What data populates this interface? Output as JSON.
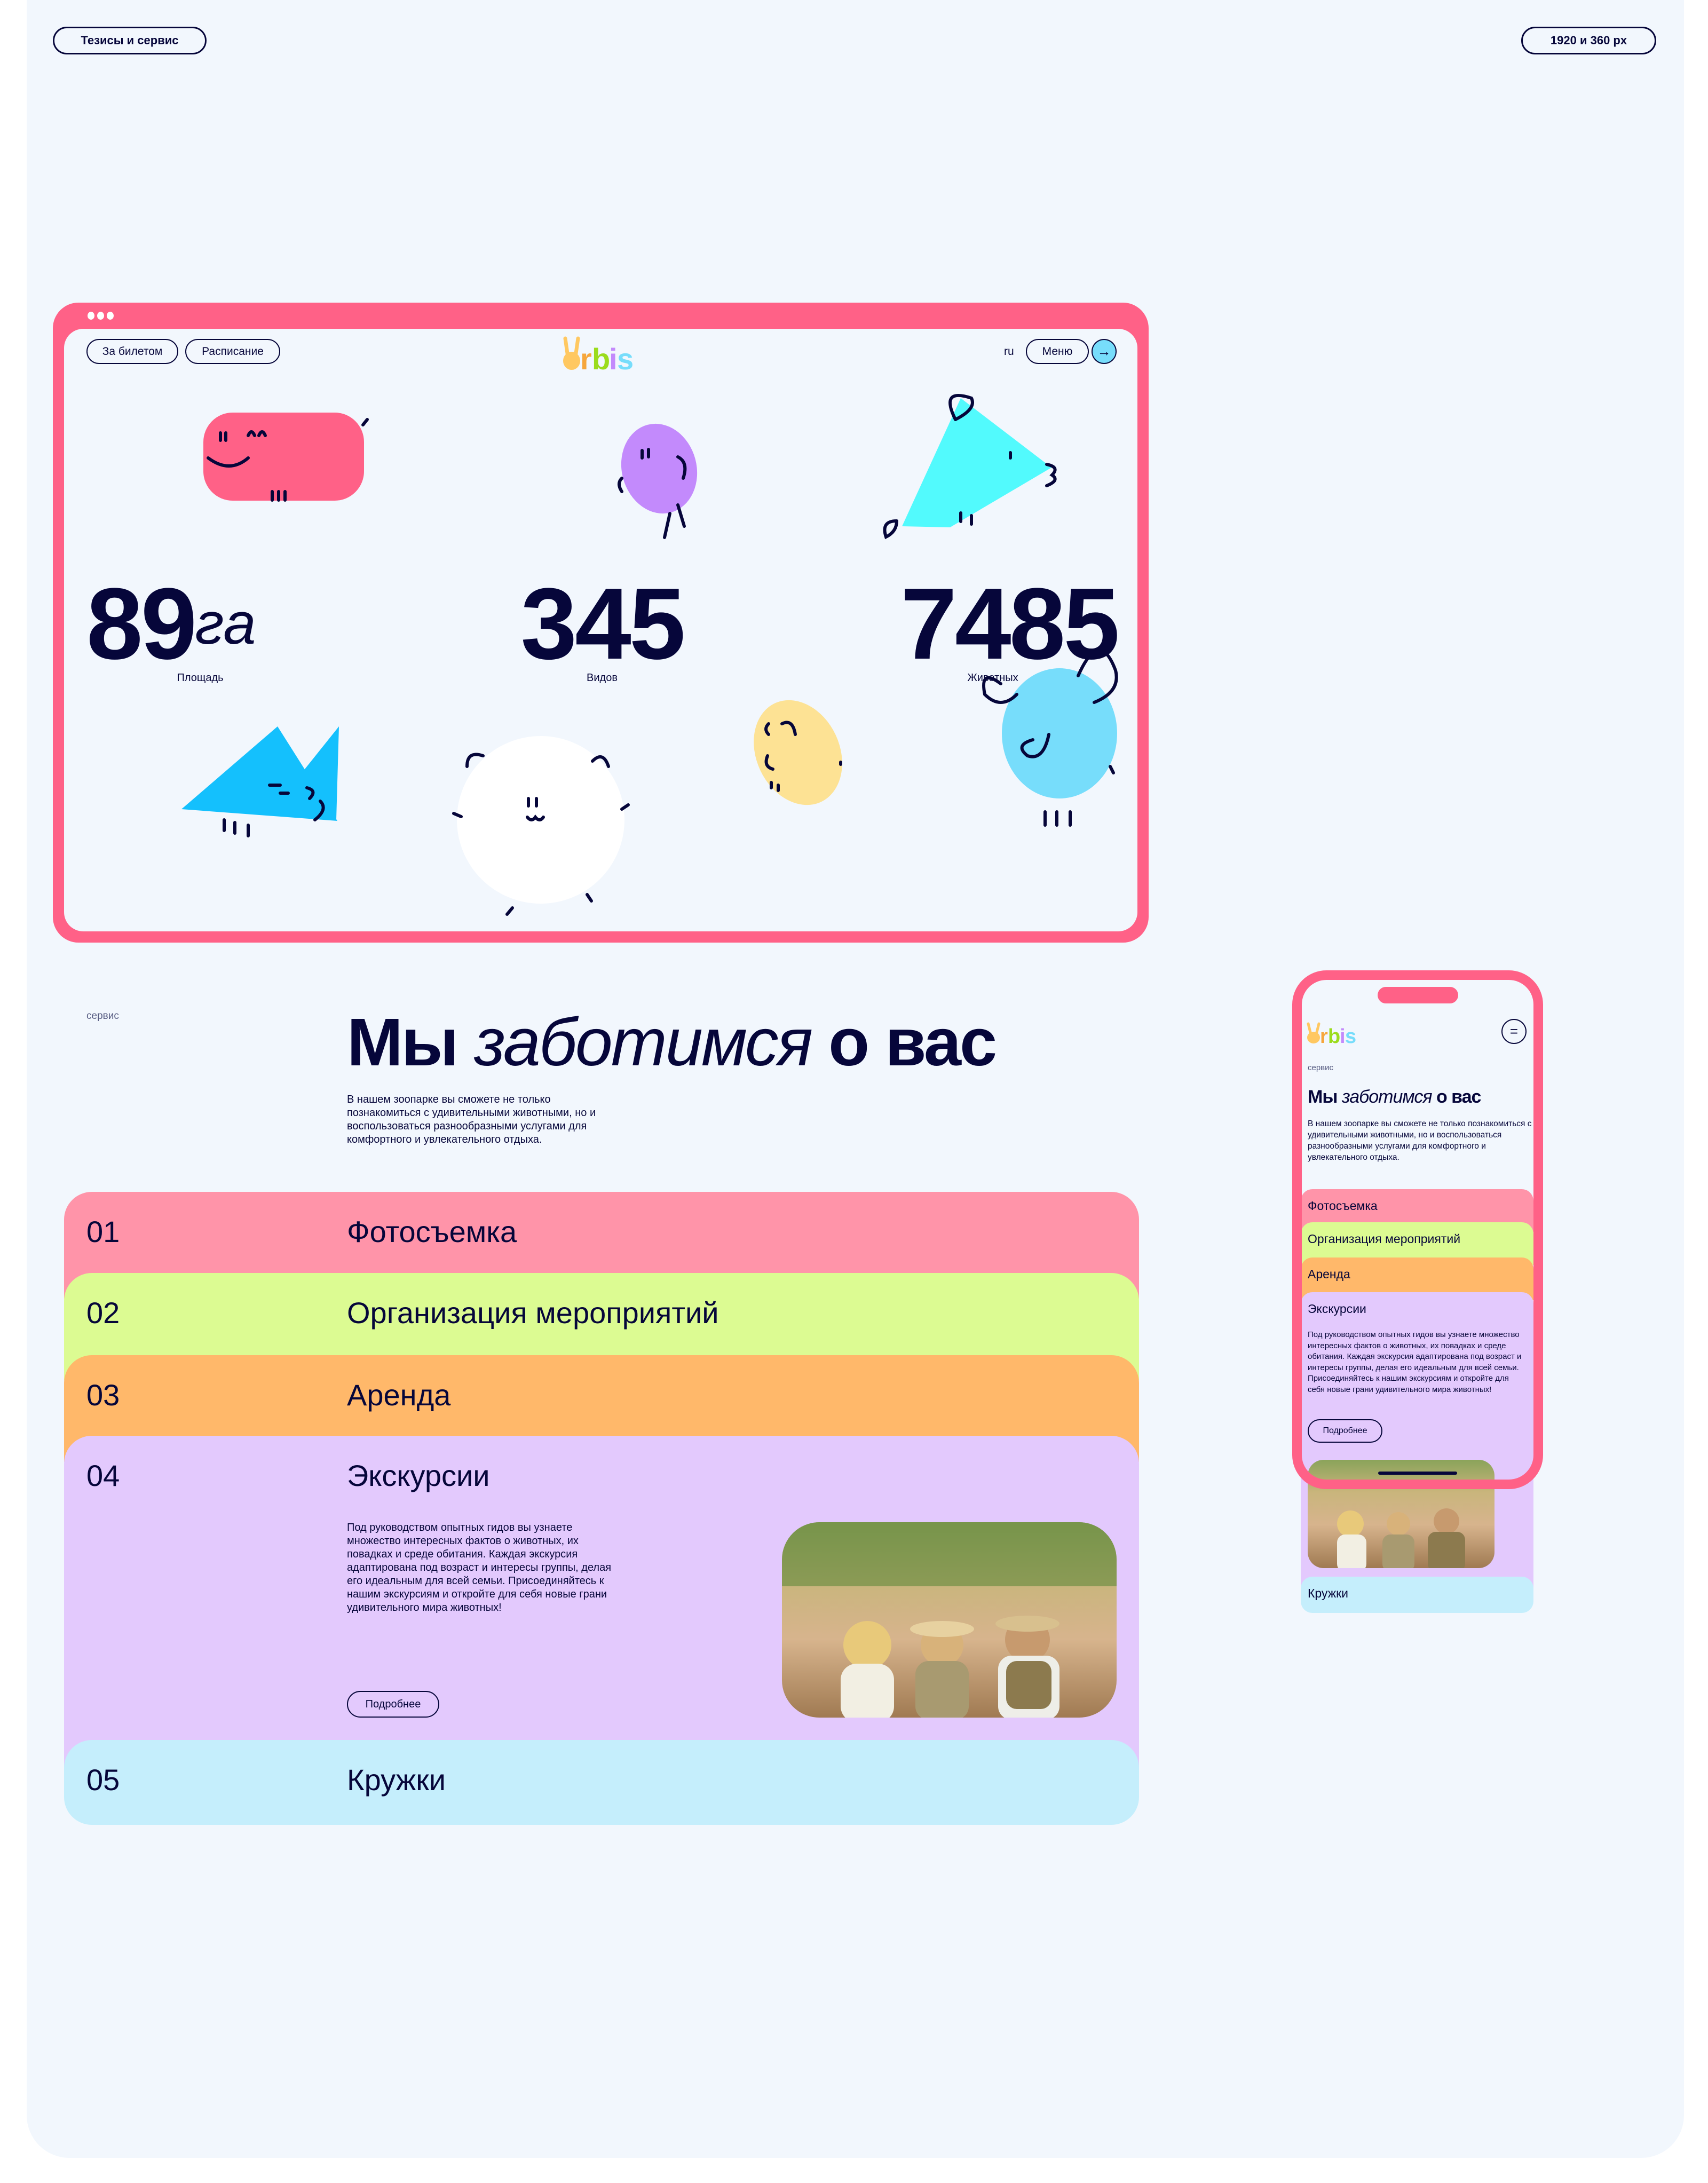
{
  "labels": {
    "left_tag": "Тезисы и сервис",
    "right_tag": "1920 и 360 px"
  },
  "desktop": {
    "nav": {
      "ticket": "За билетом",
      "schedule": "Расписание",
      "lang": "ru",
      "menu": "Меню",
      "logo": "orbis"
    },
    "stats": [
      {
        "value": "89",
        "unit": "га",
        "label": "Площадь"
      },
      {
        "value": "345",
        "label": "Видов"
      },
      {
        "value": "7485",
        "label": "Животных"
      }
    ],
    "section_tag": "сервис",
    "heading": {
      "part1": "Мы",
      "part2": "заботимся",
      "part3": "о вас"
    },
    "intro": "В нашем зоопарке вы сможете не только познакомиться с удивительными животными, но и воспользоваться разнообразными услугами для комфортного и увлекательного отдыха.",
    "services": [
      {
        "num": "01",
        "title": "Фотосъемка",
        "color": "#FF94A9"
      },
      {
        "num": "02",
        "title": "Организация мероприятий",
        "color": "#DCFB92"
      },
      {
        "num": "03",
        "title": "Аренда",
        "color": "#FFB86A"
      },
      {
        "num": "04",
        "title": "Экскурсии",
        "color": "#E3C9FD",
        "text": "Под руководством опытных гидов вы узнаете множество интересных фактов о животных, их повадках и среде обитания. Каждая экскурсия адаптирована под возраст и интересы группы, делая его идеальным для всей семьи. Присоединяйтесь к нашим экскурсиям и откройте для себя новые грани удивительного мира животных!",
        "button": "Подробнее"
      },
      {
        "num": "05",
        "title": "Кружки",
        "color": "#C5EEFC"
      }
    ]
  },
  "mobile": {
    "section_tag": "сервис",
    "logo": "orbis"
  },
  "colors": {
    "accent": "#FF6187",
    "text": "#06063A",
    "background": "#F2F7FD"
  }
}
